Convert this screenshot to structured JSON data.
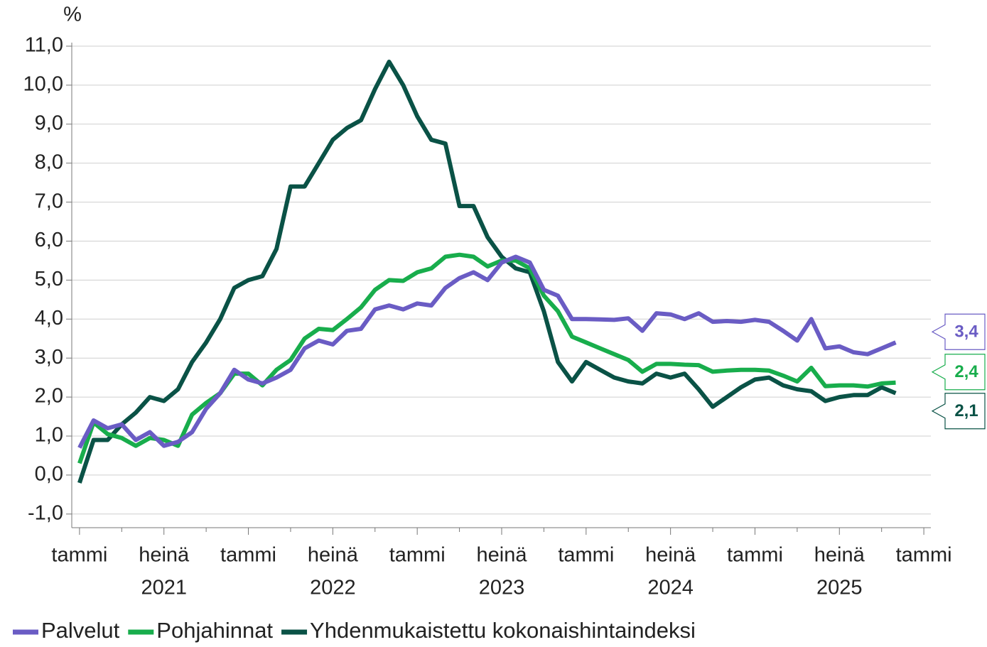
{
  "chart_data": {
    "type": "line",
    "y_unit": "%",
    "x": [
      0,
      1,
      2,
      3,
      4,
      5,
      6,
      7,
      8,
      9,
      10,
      11,
      12,
      13,
      14,
      15,
      16,
      17,
      18,
      19,
      20,
      21,
      22,
      23,
      24,
      25,
      26,
      27,
      28,
      29,
      30,
      31,
      32,
      33,
      34,
      35,
      36,
      37,
      38,
      39,
      40,
      41,
      42,
      43,
      44,
      45,
      46,
      47,
      48,
      49,
      50,
      51,
      52,
      53,
      54,
      55,
      56,
      57,
      58
    ],
    "series": [
      {
        "name": "Palvelut",
        "color": "#6a5cc4",
        "last_label": "3,4",
        "values": [
          0.7,
          1.4,
          1.2,
          1.3,
          0.9,
          1.1,
          0.75,
          0.85,
          1.1,
          1.7,
          2.1,
          2.7,
          2.45,
          2.35,
          2.5,
          2.7,
          3.25,
          3.45,
          3.35,
          3.7,
          3.75,
          4.25,
          4.35,
          4.25,
          4.4,
          4.35,
          4.8,
          5.05,
          5.2,
          5.0,
          5.45,
          5.6,
          5.45,
          4.75,
          4.6,
          4.0,
          4.0,
          3.99,
          3.98,
          4.02,
          3.7,
          4.15,
          4.12,
          4.0,
          4.15,
          3.93,
          3.95,
          3.93,
          3.98,
          3.93,
          3.7,
          3.45,
          4.0,
          3.25,
          3.3,
          3.15,
          3.1,
          3.25,
          3.4
        ]
      },
      {
        "name": "Pohjahinnat",
        "color": "#18ad4c",
        "last_label": "2,4",
        "values": [
          0.3,
          1.35,
          1.05,
          0.95,
          0.75,
          0.95,
          0.9,
          0.75,
          1.55,
          1.85,
          2.1,
          2.6,
          2.6,
          2.3,
          2.7,
          2.95,
          3.5,
          3.75,
          3.72,
          4.0,
          4.3,
          4.75,
          5.0,
          4.98,
          5.2,
          5.3,
          5.6,
          5.65,
          5.6,
          5.35,
          5.5,
          5.5,
          5.3,
          4.6,
          4.2,
          3.55,
          3.4,
          3.25,
          3.1,
          2.95,
          2.65,
          2.85,
          2.85,
          2.83,
          2.82,
          2.65,
          2.68,
          2.7,
          2.7,
          2.68,
          2.55,
          2.4,
          2.75,
          2.28,
          2.3,
          2.3,
          2.27,
          2.35,
          2.37
        ]
      },
      {
        "name": "Yhdenmukaistettu kokonaishintaindeksi",
        "color": "#0a5246",
        "last_label": "2,1",
        "values": [
          -0.2,
          0.9,
          0.9,
          1.3,
          1.6,
          2.0,
          1.9,
          2.2,
          2.9,
          3.4,
          4.0,
          4.8,
          5.0,
          5.1,
          5.8,
          7.4,
          7.4,
          8.0,
          8.6,
          8.9,
          9.1,
          9.9,
          10.6,
          10.0,
          9.2,
          8.6,
          8.5,
          6.9,
          6.9,
          6.1,
          5.6,
          5.3,
          5.2,
          4.2,
          2.9,
          2.4,
          2.9,
          2.7,
          2.5,
          2.4,
          2.35,
          2.6,
          2.5,
          2.6,
          2.2,
          1.75,
          2.0,
          2.25,
          2.45,
          2.5,
          2.3,
          2.2,
          2.15,
          1.9,
          2.0,
          2.05,
          2.05,
          2.25,
          2.1
        ]
      }
    ],
    "xlim": [
      -0.55,
      60.5
    ],
    "xticks": [
      {
        "value": 0,
        "label": "tammi"
      },
      {
        "value": 6,
        "label": "heinä"
      },
      {
        "value": 12,
        "label": "tammi"
      },
      {
        "value": 18,
        "label": "heinä"
      },
      {
        "value": 24,
        "label": "tammi"
      },
      {
        "value": 30,
        "label": "heinä"
      },
      {
        "value": 36,
        "label": "tammi"
      },
      {
        "value": 42,
        "label": "heinä"
      },
      {
        "value": 48,
        "label": "tammi"
      },
      {
        "value": 54,
        "label": "heinä"
      },
      {
        "value": 60,
        "label": "tammi"
      }
    ],
    "x_minor_ticks": [
      3,
      9,
      15,
      21,
      27,
      33,
      39,
      45,
      51,
      57
    ],
    "x_group_labels": [
      {
        "value": 6,
        "label": "2021"
      },
      {
        "value": 18,
        "label": "2022"
      },
      {
        "value": 30,
        "label": "2023"
      },
      {
        "value": 42,
        "label": "2024"
      },
      {
        "value": 54,
        "label": "2025"
      }
    ],
    "ylim": [
      -1.35,
      11
    ],
    "yticks": [
      {
        "value": -1,
        "label": "-1,0"
      },
      {
        "value": 0,
        "label": "0,0"
      },
      {
        "value": 1,
        "label": "1,0"
      },
      {
        "value": 2,
        "label": "2,0"
      },
      {
        "value": 3,
        "label": "3,0"
      },
      {
        "value": 4,
        "label": "4,0"
      },
      {
        "value": 5,
        "label": "5,0"
      },
      {
        "value": 6,
        "label": "6,0"
      },
      {
        "value": 7,
        "label": "7,0"
      },
      {
        "value": 8,
        "label": "8,0"
      },
      {
        "value": 9,
        "label": "9,0"
      },
      {
        "value": 10,
        "label": "10,0"
      },
      {
        "value": 11,
        "label": "11,0"
      }
    ],
    "grid": true,
    "legend": "bottom"
  }
}
